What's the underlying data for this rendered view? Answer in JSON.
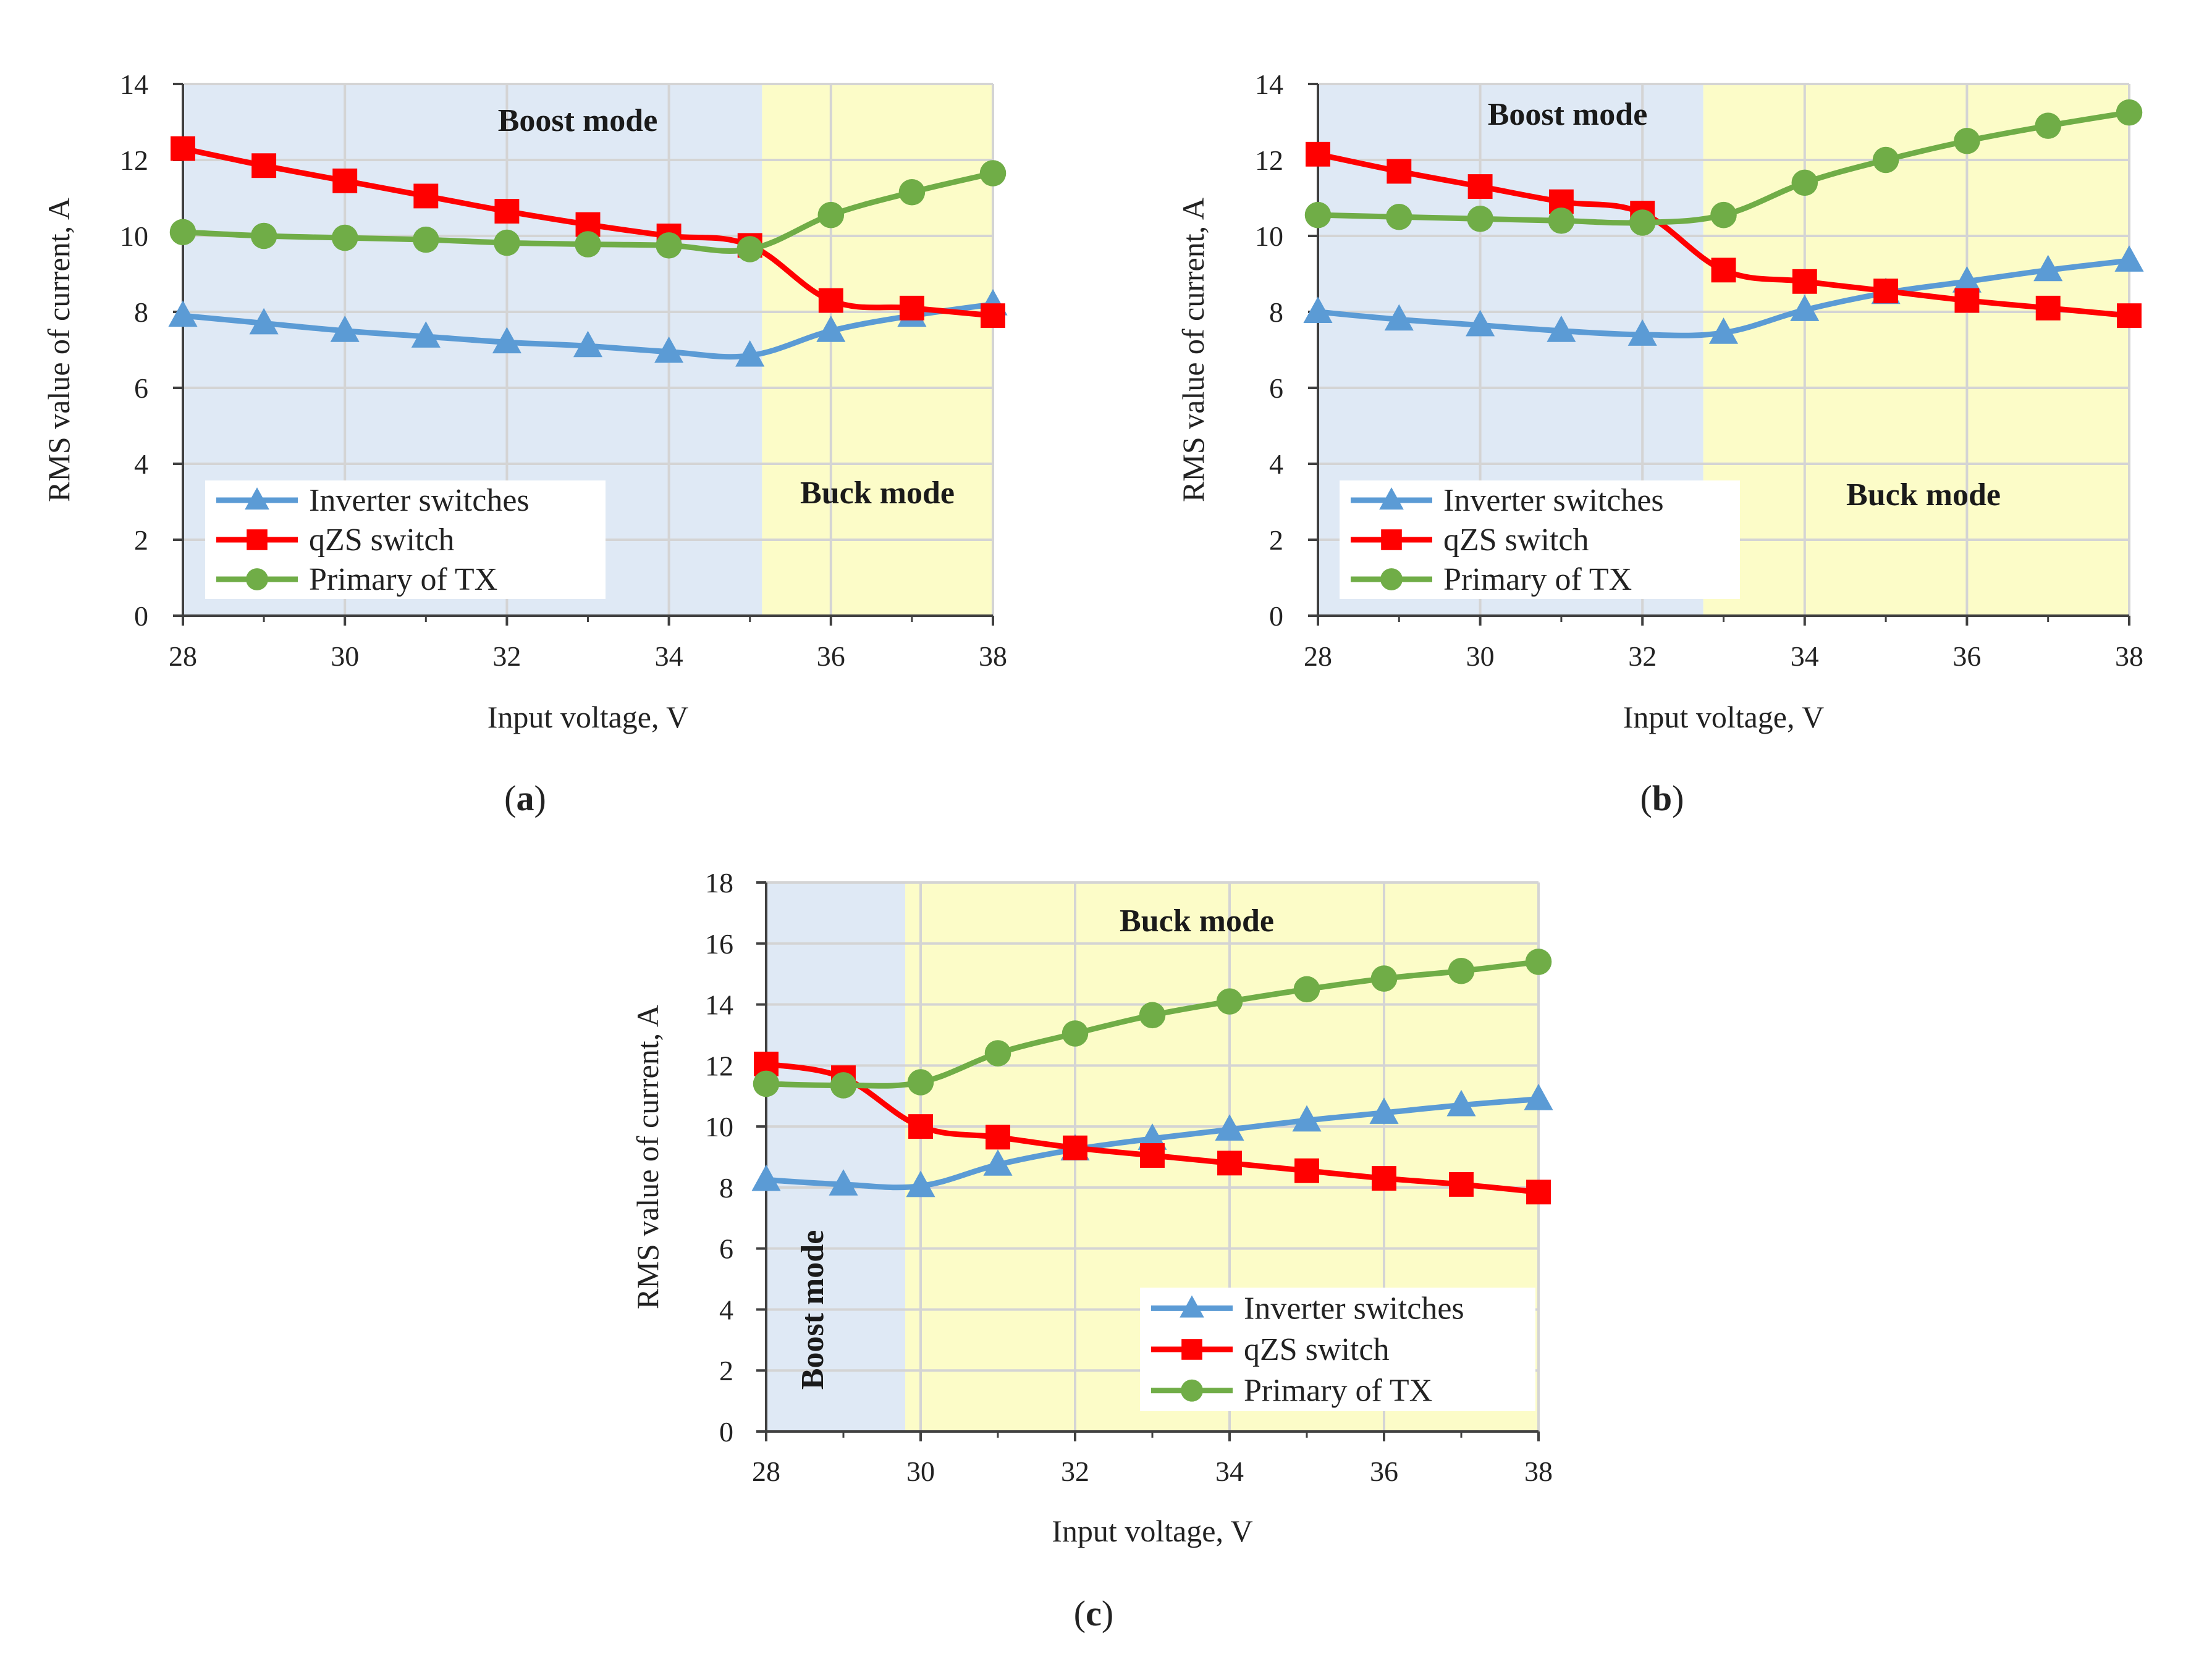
{
  "chart_data": [
    {
      "type": "line",
      "caption": "a",
      "xlabel": "Input voltage, V",
      "ylabel": "RMS value of current, A",
      "xlim": [
        28,
        38
      ],
      "ylim": [
        0,
        14
      ],
      "xticks": [
        28,
        30,
        32,
        34,
        36,
        38
      ],
      "yticks": [
        0,
        2,
        4,
        6,
        8,
        10,
        12,
        14
      ],
      "grid": true,
      "regions": [
        {
          "label": "Boost mode",
          "from": 28,
          "to": 35.15,
          "color": "#dfe9f5"
        },
        {
          "label": "Buck mode",
          "from": 35.15,
          "to": 38,
          "color": "#fcfcc8"
        }
      ],
      "legend_position": "bottom-left",
      "x": [
        28,
        29,
        30,
        31,
        32,
        33,
        34,
        35,
        36,
        37,
        38
      ],
      "series": [
        {
          "name": "Inverter switches",
          "marker": "triangle",
          "color": "#5b9bd5",
          "values": [
            7.9,
            7.7,
            7.5,
            7.35,
            7.2,
            7.1,
            6.95,
            6.85,
            7.5,
            7.9,
            8.2
          ]
        },
        {
          "name": "qZS switch",
          "marker": "square",
          "color": "#ff0000",
          "values": [
            12.3,
            11.85,
            11.45,
            11.05,
            10.65,
            10.3,
            10.0,
            9.75,
            8.3,
            8.1,
            7.9
          ]
        },
        {
          "name": "Primary of TX",
          "marker": "circle",
          "color": "#70ad47",
          "values": [
            10.1,
            10.0,
            9.95,
            9.9,
            9.82,
            9.78,
            9.75,
            9.65,
            10.55,
            11.15,
            11.65
          ]
        }
      ]
    },
    {
      "type": "line",
      "caption": "b",
      "xlabel": "Input voltage, V",
      "ylabel": "RMS value of current, A",
      "xlim": [
        28,
        38
      ],
      "ylim": [
        0,
        14
      ],
      "xticks": [
        28,
        30,
        32,
        34,
        36,
        38
      ],
      "yticks": [
        0,
        2,
        4,
        6,
        8,
        10,
        12,
        14
      ],
      "grid": true,
      "regions": [
        {
          "label": "Boost mode",
          "from": 28,
          "to": 32.75,
          "color": "#dfe9f5"
        },
        {
          "label": "Buck mode",
          "from": 32.75,
          "to": 38,
          "color": "#fcfcc8"
        }
      ],
      "legend_position": "bottom-left",
      "x": [
        28,
        29,
        30,
        31,
        32,
        33,
        34,
        35,
        36,
        37,
        38
      ],
      "series": [
        {
          "name": "Inverter switches",
          "marker": "triangle",
          "color": "#5b9bd5",
          "values": [
            8.0,
            7.8,
            7.65,
            7.5,
            7.4,
            7.45,
            8.05,
            8.5,
            8.8,
            9.1,
            9.35
          ]
        },
        {
          "name": "qZS switch",
          "marker": "square",
          "color": "#ff0000",
          "values": [
            12.15,
            11.7,
            11.3,
            10.9,
            10.6,
            9.1,
            8.8,
            8.55,
            8.3,
            8.1,
            7.9
          ]
        },
        {
          "name": "Primary of TX",
          "marker": "circle",
          "color": "#70ad47",
          "values": [
            10.55,
            10.5,
            10.45,
            10.4,
            10.35,
            10.55,
            11.4,
            12.0,
            12.5,
            12.9,
            13.25
          ]
        }
      ]
    },
    {
      "type": "line",
      "caption": "c",
      "xlabel": "Input voltage, V",
      "ylabel": "RMS value of current, A",
      "xlim": [
        28,
        38
      ],
      "ylim": [
        0,
        18
      ],
      "xticks": [
        28,
        30,
        32,
        34,
        36,
        38
      ],
      "yticks": [
        0,
        2,
        4,
        6,
        8,
        10,
        12,
        14,
        16,
        18
      ],
      "grid": true,
      "regions": [
        {
          "label": "Boost mode",
          "from": 28,
          "to": 29.8,
          "color": "#dfe9f5"
        },
        {
          "label": "Buck mode",
          "from": 29.8,
          "to": 38,
          "color": "#fcfcc8"
        }
      ],
      "legend_position": "bottom-right",
      "x": [
        28,
        29,
        30,
        31,
        32,
        33,
        34,
        35,
        36,
        37,
        38
      ],
      "series": [
        {
          "name": "Inverter switches",
          "marker": "triangle",
          "color": "#5b9bd5",
          "values": [
            8.25,
            8.1,
            8.05,
            8.75,
            9.25,
            9.6,
            9.9,
            10.2,
            10.45,
            10.7,
            10.9
          ]
        },
        {
          "name": "qZS switch",
          "marker": "square",
          "color": "#ff0000",
          "values": [
            12.05,
            11.6,
            10.0,
            9.65,
            9.3,
            9.05,
            8.8,
            8.55,
            8.3,
            8.1,
            7.85
          ]
        },
        {
          "name": "Primary of TX",
          "marker": "circle",
          "color": "#70ad47",
          "values": [
            11.4,
            11.35,
            11.45,
            12.4,
            13.05,
            13.65,
            14.1,
            14.5,
            14.85,
            15.1,
            15.4
          ]
        }
      ]
    }
  ]
}
